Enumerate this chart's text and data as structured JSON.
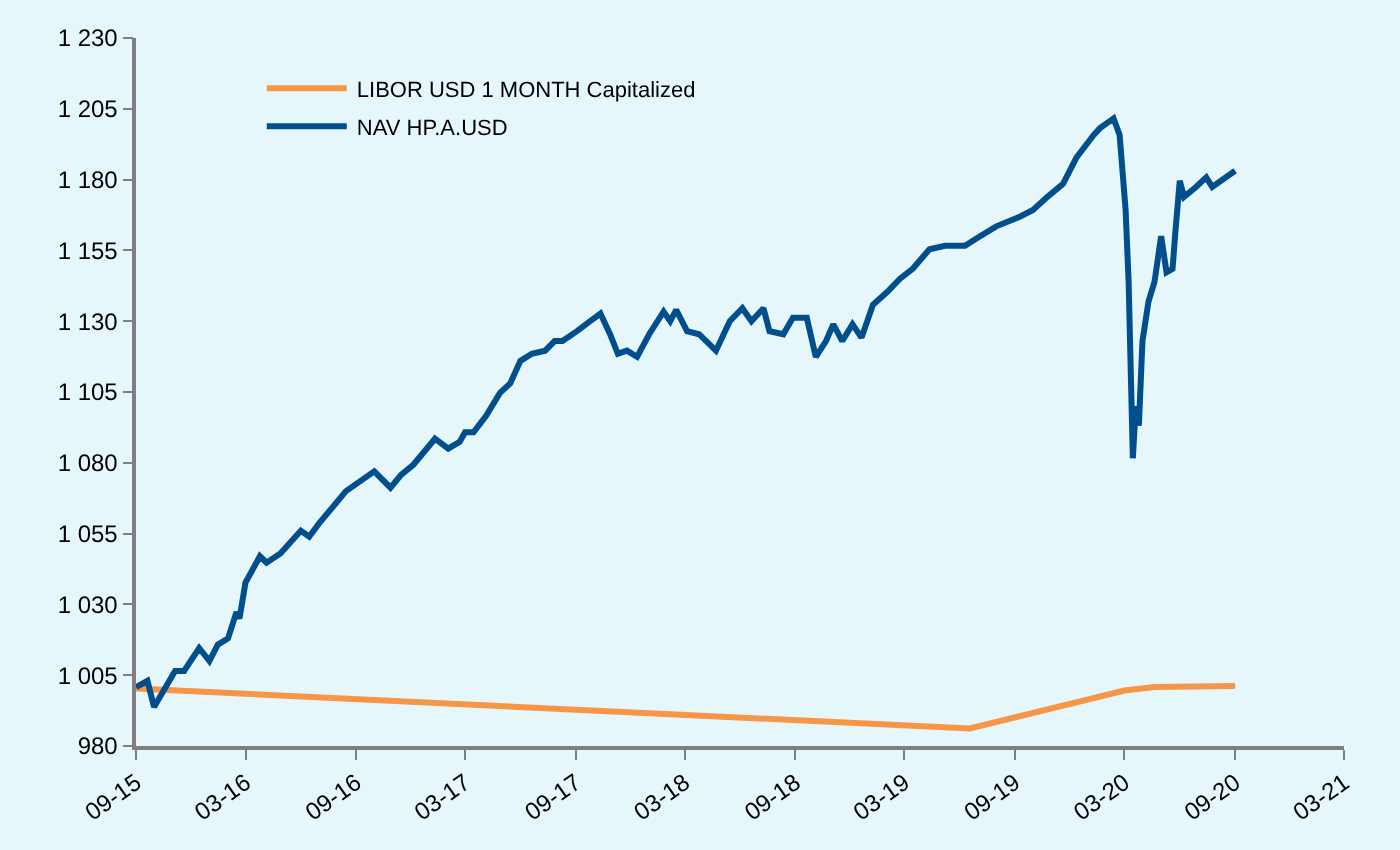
{
  "chart_data": {
    "type": "line",
    "xlim": [
      "2015-09-01",
      "2021-03-01"
    ],
    "xticks": [
      {
        "value": "2015-09-01",
        "label": "09-15"
      },
      {
        "value": "2016-03-01",
        "label": "03-16"
      },
      {
        "value": "2016-09-01",
        "label": "09-16"
      },
      {
        "value": "2017-03-01",
        "label": "03-17"
      },
      {
        "value": "2017-09-01",
        "label": "09-17"
      },
      {
        "value": "2018-03-01",
        "label": "03-18"
      },
      {
        "value": "2018-09-01",
        "label": "09-18"
      },
      {
        "value": "2019-03-01",
        "label": "03-19"
      },
      {
        "value": "2019-09-01",
        "label": "09-19"
      },
      {
        "value": "2020-03-01",
        "label": "03-20"
      },
      {
        "value": "2020-09-01",
        "label": "09-20"
      },
      {
        "value": "2021-03-01",
        "label": "03-21"
      }
    ],
    "ylim": [
      980,
      1230
    ],
    "yticks": [
      980,
      {
        "value": 1005,
        "label": "1 005"
      },
      {
        "value": 1030,
        "label": "1 030"
      },
      {
        "value": 1055,
        "label": "1 055"
      },
      {
        "value": 1080,
        "label": "1 080"
      },
      {
        "value": 1105,
        "label": "1 105"
      },
      {
        "value": 1130,
        "label": "1 130"
      },
      {
        "value": 1155,
        "label": "1 155"
      },
      {
        "value": 1180,
        "label": "1 180"
      },
      {
        "value": 1205,
        "label": "1 205"
      },
      {
        "value": 1230,
        "label": "1 230"
      }
    ],
    "grid": false,
    "legend": "top left",
    "marker": "none",
    "line_style": "solid",
    "series": [
      {
        "name": "LIBOR USD 1 MONTH Capitalized",
        "color": "#f79646",
        "x": [
          "2015-09-01",
          "2018-03-20",
          "2019-06-18",
          "2020-03-01",
          "2020-04-20",
          "2020-09-01"
        ],
        "values": [
          1000.3,
          990.8,
          986.2,
          999.6,
          1000.8,
          1001.2
        ]
      },
      {
        "name": "NAV HP.A.USD",
        "color": "#004e8c",
        "x": [
          "2015-09-01",
          "2015-09-20",
          "2015-10-01",
          "2015-11-05",
          "2015-11-20",
          "2015-12-15",
          "2016-01-01",
          "2016-01-15",
          "2016-02-01",
          "2016-02-15",
          "2016-02-20",
          "2016-03-01",
          "2016-03-25",
          "2016-04-05",
          "2016-04-28",
          "2016-06-01",
          "2016-06-15",
          "2016-07-01",
          "2016-08-15",
          "2016-10-01",
          "2016-10-28",
          "2016-11-15",
          "2016-12-05",
          "2017-01-10",
          "2017-02-01",
          "2017-02-20",
          "2017-03-01",
          "2017-03-15",
          "2017-04-05",
          "2017-04-28",
          "2017-05-15",
          "2017-06-01",
          "2017-06-20",
          "2017-07-12",
          "2017-07-28",
          "2017-08-10",
          "2017-09-03",
          "2017-09-25",
          "2017-10-12",
          "2017-10-28",
          "2017-11-10",
          "2017-11-25",
          "2017-12-12",
          "2018-01-01",
          "2018-01-25",
          "2018-02-05",
          "2018-02-15",
          "2018-03-05",
          "2018-03-25",
          "2018-04-22",
          "2018-05-15",
          "2018-06-05",
          "2018-06-20",
          "2018-07-10",
          "2018-07-20",
          "2018-08-12",
          "2018-08-28",
          "2018-09-20",
          "2018-10-05",
          "2018-10-22",
          "2018-11-03",
          "2018-11-18",
          "2018-12-05",
          "2018-12-20",
          "2019-01-08",
          "2019-02-01",
          "2019-02-22",
          "2019-03-15",
          "2019-04-12",
          "2019-05-08",
          "2019-06-10",
          "2019-07-05",
          "2019-08-01",
          "2019-09-10",
          "2019-10-01",
          "2019-10-25",
          "2019-11-20",
          "2019-12-12",
          "2020-01-10",
          "2020-01-20",
          "2020-02-12",
          "2020-02-22",
          "2020-03-03",
          "2020-03-08",
          "2020-03-15",
          "2020-03-20",
          "2020-03-25",
          "2020-03-31",
          "2020-04-10",
          "2020-04-20",
          "2020-05-01",
          "2020-05-10",
          "2020-05-20",
          "2020-05-25",
          "2020-06-01",
          "2020-06-08",
          "2020-06-28",
          "2020-07-15",
          "2020-07-25",
          "2020-09-01"
        ],
        "values": [
          1000.8,
          1003,
          993.8,
          1006.5,
          1006.5,
          1014.6,
          1010,
          1015.8,
          1018,
          1027.3,
          1025,
          1037.7,
          1047,
          1044.7,
          1048,
          1056,
          1053.9,
          1058.5,
          1070,
          1077,
          1071.2,
          1075.8,
          1079.3,
          1088.5,
          1085,
          1087.4,
          1090.8,
          1090.8,
          1096.6,
          1104.7,
          1108,
          1116,
          1118.5,
          1119.6,
          1123,
          1123,
          1126.5,
          1130,
          1132.7,
          1125.4,
          1118.5,
          1119.6,
          1117.4,
          1125.4,
          1133.4,
          1130,
          1134,
          1126.5,
          1125.4,
          1119.6,
          1130,
          1134.6,
          1130,
          1134.6,
          1126.5,
          1125.4,
          1131.2,
          1131.2,
          1117.4,
          1123,
          1128.9,
          1123,
          1128.9,
          1124.2,
          1135.8,
          1140.4,
          1145,
          1148.5,
          1155.4,
          1156.6,
          1156.6,
          1160,
          1163.5,
          1167,
          1169.3,
          1173.9,
          1178.5,
          1187.7,
          1195.8,
          1198.1,
          1201.6,
          1195.8,
          1169.3,
          1143.9,
          1081.6,
          1100,
          1093.1,
          1123,
          1136.9,
          1143.9,
          1160,
          1147.3,
          1148.5,
          1162.3,
          1179.6,
          1173.9,
          1177.4,
          1180.8,
          1177.4,
          1183.1
        ]
      }
    ]
  }
}
